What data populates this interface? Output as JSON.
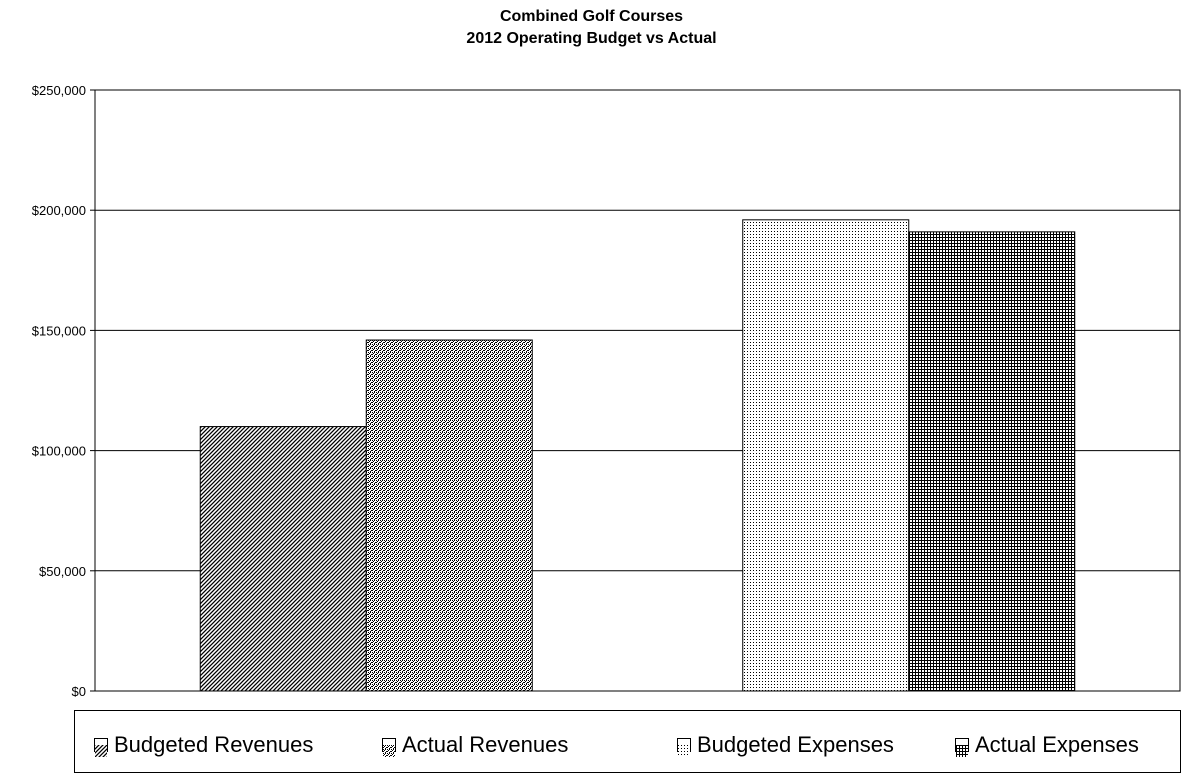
{
  "chart_data": {
    "type": "bar",
    "title": [
      "Combined Golf Courses",
      "2012 Operating Budget vs Actual"
    ],
    "categories": [
      "",
      ""
    ],
    "series": [
      {
        "name": "Budgeted Revenues",
        "values": [
          110000,
          null
        ],
        "pattern": "diag"
      },
      {
        "name": "Actual Revenues",
        "values": [
          null,
          146000
        ],
        "pattern": "weave"
      },
      {
        "name": "Budgeted Expenses",
        "values": [
          196000,
          null
        ],
        "pattern": "dots"
      },
      {
        "name": "Actual Expenses",
        "values": [
          null,
          191000
        ],
        "pattern": "grid"
      }
    ],
    "bars": [
      {
        "series": "Budgeted Revenues",
        "value": 110000,
        "pattern": "diag"
      },
      {
        "series": "Actual Revenues",
        "value": 146000,
        "pattern": "weave"
      },
      {
        "series": "Budgeted Expenses",
        "value": 196000,
        "pattern": "dots"
      },
      {
        "series": "Actual Expenses",
        "value": 191000,
        "pattern": "grid"
      }
    ],
    "y_ticks": [
      "$0",
      "$50,000",
      "$100,000",
      "$150,000",
      "$200,000",
      "$250,000"
    ],
    "ylim": [
      0,
      250000
    ],
    "grid": true,
    "legend": "bottom",
    "colors": {
      "bar_edge": "#000000",
      "grid": "#000000",
      "background": "#ffffff"
    }
  }
}
